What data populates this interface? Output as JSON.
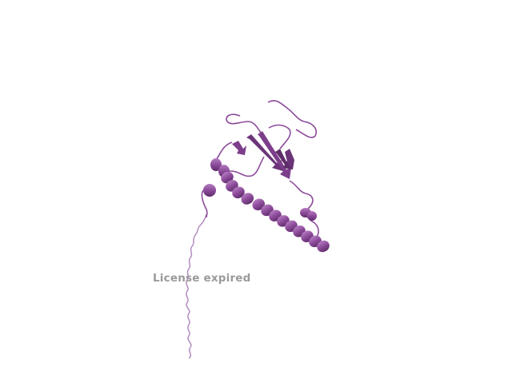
{
  "scene": {
    "subject": "protein-cartoon",
    "colors": {
      "background": "#ffffff",
      "ribbon": "#8c4b9a",
      "ribbon_dark": "#5e2d69",
      "ribbon_light": "#b47ac0",
      "tail": "#b48cc0"
    }
  },
  "watermark": {
    "text": "License expired"
  }
}
